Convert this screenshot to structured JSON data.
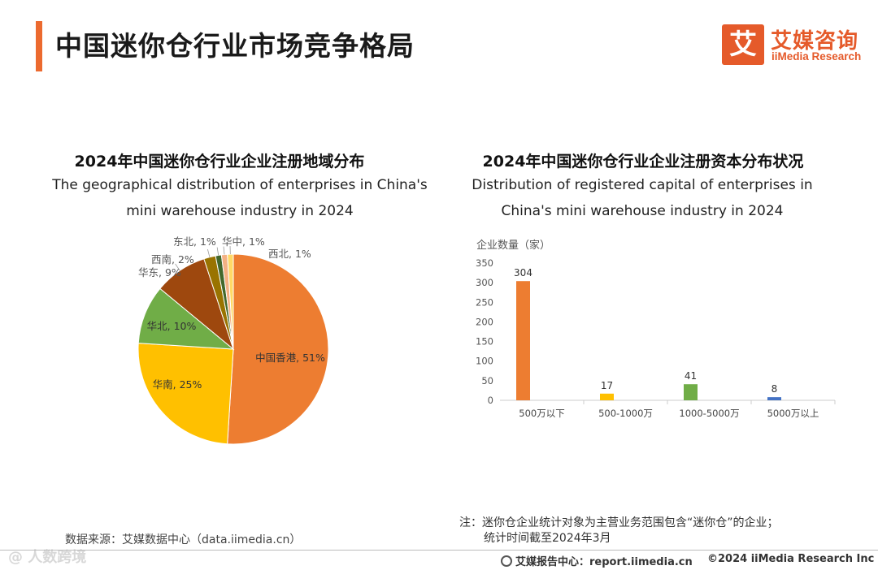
{
  "header": {
    "title": "中国迷你仓行业市场竞争格局",
    "accent_color": "#ec6a2f"
  },
  "logo": {
    "mark": "艾",
    "name_cn": "艾媒咨询",
    "name_en": "iiMedia Research",
    "color": "#e55a2a"
  },
  "chart_data": [
    {
      "type": "pie",
      "title": "2024年中国迷你仓行业企业注册地域分布",
      "subtitle_line1": "The geographical distribution of enterprises in China's",
      "subtitle_line2": "mini warehouse industry in 2024",
      "slices": [
        {
          "label": "中国香港, 51%",
          "name": "中国香港",
          "value": 51,
          "color": "#ed7d31"
        },
        {
          "label": "华南, 25%",
          "name": "华南",
          "value": 25,
          "color": "#ffc000"
        },
        {
          "label": "华北, 10%",
          "name": "华北",
          "value": 10,
          "color": "#70ad47"
        },
        {
          "label": "华东, 9%",
          "name": "华东",
          "value": 9,
          "color": "#9e480e"
        },
        {
          "label": "西南, 2%",
          "name": "西南",
          "value": 2,
          "color": "#997300"
        },
        {
          "label": "东北, 1%",
          "name": "东北",
          "value": 1,
          "color": "#43682b"
        },
        {
          "label": "华中, 1%",
          "name": "华中",
          "value": 1,
          "color": "#f4b183"
        },
        {
          "label": "西北, 1%",
          "name": "西北",
          "value": 1,
          "color": "#ffd966"
        }
      ]
    },
    {
      "type": "bar",
      "title": "2024年中国迷你仓行业企业注册资本分布状况",
      "subtitle_line1": "Distribution of registered capital of enterprises in",
      "subtitle_line2": "China's mini warehouse industry in 2024",
      "ylabel": "企业数量（家）",
      "ylim": [
        0,
        350
      ],
      "yticks": [
        0,
        50,
        100,
        150,
        200,
        250,
        300,
        350
      ],
      "categories": [
        "500万以下",
        "500-1000万",
        "1000-5000万",
        "5000万以上"
      ],
      "values": [
        304,
        17,
        41,
        8
      ],
      "colors": [
        "#ed7d31",
        "#ffc000",
        "#70ad47",
        "#4472c4"
      ],
      "grid": false
    }
  ],
  "footnote": {
    "line1": "注：迷你仓企业统计对象为主营业务范围包含“迷你仓”的企业；",
    "line2": "统计时间截至2024年3月"
  },
  "source": "数据来源：艾媒数据中心（data.iimedia.cn）",
  "watermark": "@ 人数跨境",
  "footer": {
    "report": "艾媒报告中心：report.iimedia.cn",
    "copyright": "©2024  iiMedia Research  Inc"
  }
}
